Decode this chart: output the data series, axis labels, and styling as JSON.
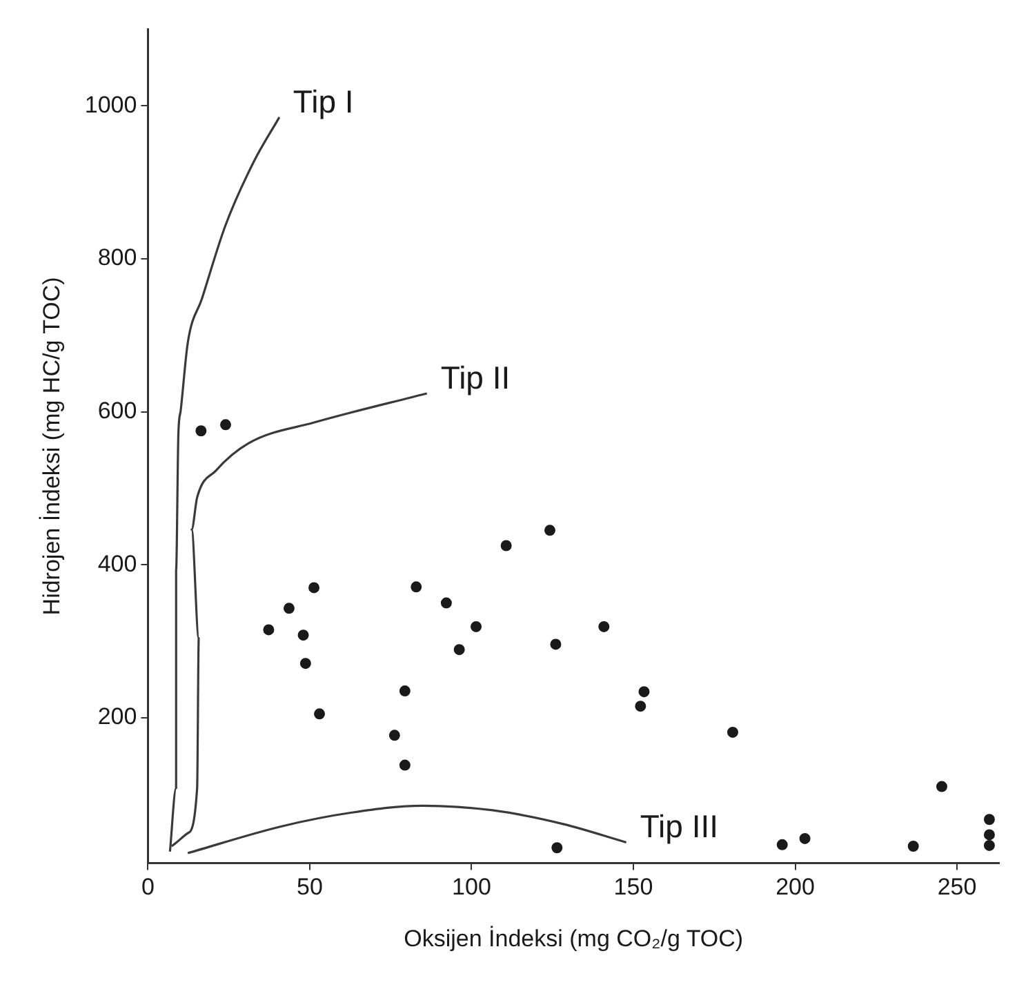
{
  "chart_data": {
    "type": "scatter",
    "xlabel": "Oksijen İndeksi (mg CO₂/g TOC)",
    "ylabel": "Hidrojen İndeksi (mg HC/g TOC)",
    "xlim": [
      0,
      263
    ],
    "ylim": [
      10,
      1100
    ],
    "xticks": [
      0,
      50,
      100,
      150,
      200,
      250
    ],
    "yticks": [
      200,
      400,
      600,
      800,
      1000
    ],
    "grid": false,
    "legend": false,
    "series": [
      {
        "marker": "circle",
        "color": "#1a1a1a",
        "x": [
          16.4,
          24,
          37.3,
          43.6,
          48,
          48.7,
          51.3,
          53,
          76.2,
          79.4,
          79.4,
          82.9,
          92.2,
          96.2,
          101.4,
          110.7,
          124.2,
          126,
          126.4,
          140.9,
          153.3,
          152.2,
          180.7,
          245.3,
          196,
          203,
          236.5,
          260,
          260,
          260
        ],
        "values": [
          575,
          583,
          315,
          343,
          308,
          271,
          370,
          205,
          177,
          235,
          138,
          371,
          350,
          289,
          319,
          425,
          445,
          296,
          30,
          319,
          234,
          215,
          181,
          110,
          34,
          42,
          32,
          67,
          47,
          33
        ]
      },
      {
        "type": "line",
        "marker": "none",
        "name": "Tip I",
        "color": "#3a3a3a",
        "x": [
          6.8,
          8.7,
          8.7,
          9.4,
          10.1,
          12.3,
          16.7,
          23.9,
          32.6,
          40.6
        ],
        "values": [
          25,
          108,
          393,
          571,
          601,
          690,
          748,
          843,
          926,
          985
        ]
      },
      {
        "type": "line",
        "marker": "none",
        "name": "Tip II",
        "color": "#3a3a3a",
        "x": [
          7.3,
          12.3,
          15.2,
          15.7,
          13.5,
          15.2,
          21,
          31.2,
          51.4,
          86.2
        ],
        "values": [
          32,
          49,
          108,
          304,
          446,
          488,
          523,
          559,
          586,
          624
        ]
      },
      {
        "type": "line",
        "marker": "none",
        "name": "Tip III",
        "color": "#3a3a3a",
        "x": [
          12.3,
          41.3,
          63,
          84.8,
          106.5,
          128.3,
          147.8
        ],
        "values": [
          23,
          58,
          76,
          85,
          79,
          61,
          37
        ]
      }
    ]
  }
}
